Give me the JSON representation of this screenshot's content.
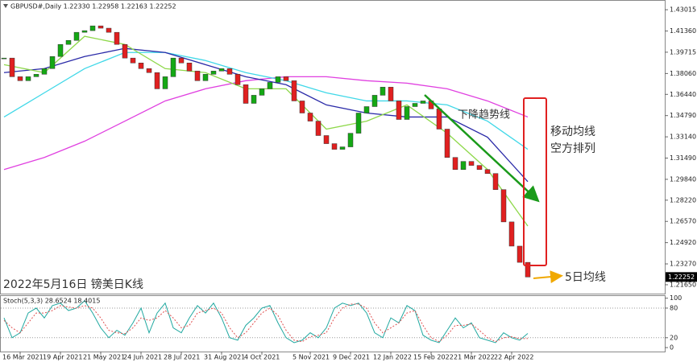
{
  "chart_data": [
    {
      "type": "candlestick",
      "header": "GBPUSD#,Daily  1.22330 1.22958 1.22163 1.22252",
      "caption": "2022年5月16日 镑美日K线",
      "categories": [
        null,
        null,
        "16 Mar 2021",
        null,
        null,
        null,
        null,
        "19 Apr 2021",
        null,
        null,
        null,
        null,
        "21 May 2021",
        null,
        null,
        null,
        null,
        "24 Jun 2021",
        null,
        null,
        null,
        null,
        "28 Jul 2021",
        null,
        null,
        null,
        null,
        "31 Aug 2021",
        null,
        null,
        null,
        null,
        "4 Oct 2021",
        null,
        null,
        null,
        null,
        null,
        "5 Nov 2021",
        null,
        null,
        null,
        null,
        "9 Dec 2021",
        null,
        null,
        null,
        null,
        "12 Jan 2022",
        null,
        null,
        null,
        null,
        "15 Feb 2022",
        null,
        null,
        null,
        null,
        "21 Mar 2022",
        null,
        null,
        null,
        null,
        "22 Apr 2022",
        null,
        null
      ],
      "values": [
        1.3926,
        1.3781,
        1.375,
        1.3781,
        1.38,
        1.3844,
        1.3938,
        1.4032,
        1.4063,
        1.4126,
        1.4139,
        1.4176,
        1.4158,
        1.4126,
        1.4032,
        1.3926,
        1.3888,
        1.3844,
        1.3813,
        1.3687,
        1.3781,
        1.3926,
        1.3888,
        1.3825,
        1.375,
        1.38,
        1.3825,
        1.3844,
        1.38,
        1.3719,
        1.3574,
        1.3637,
        1.3687,
        1.3737,
        1.3781,
        1.375,
        1.3593,
        1.3499,
        1.3436,
        1.3324,
        1.3261,
        1.3217,
        1.3236,
        1.3342,
        1.3499,
        1.3549,
        1.3637,
        1.37,
        1.3593,
        1.3449,
        1.3549,
        1.3574,
        1.3593,
        1.3531,
        1.3374,
        1.3154,
        1.306,
        1.3123,
        1.3092,
        1.306,
        1.3029,
        1.2904,
        1.2653,
        1.2465,
        1.2339,
        1.22252
      ],
      "up_color": "#14a814",
      "down_color": "#e02020",
      "last_price": 1.22252,
      "ylim": [
        1.2096,
        1.4377
      ],
      "yticks": [
        1.43015,
        {
          "value": 1.4136,
          "label": "1.41360"
        },
        1.39715,
        {
          "value": 1.3806,
          "label": "1.38060"
        },
        {
          "value": 1.3644,
          "label": "1.36440"
        },
        {
          "value": 1.3479,
          "label": "1.34790"
        },
        {
          "value": 1.3314,
          "label": "1.33140"
        },
        {
          "value": 1.3149,
          "label": "1.31490"
        },
        {
          "value": 1.2984,
          "label": "1.29840"
        },
        {
          "value": 1.2822,
          "label": "1.28220"
        },
        {
          "value": 1.2657,
          "label": "1.26570"
        },
        {
          "value": 1.2492,
          "label": "1.24920"
        },
        {
          "value": 1.2327,
          "label": "1.23270"
        },
        {
          "value": 1.2165,
          "label": "1.21650"
        }
      ],
      "ma": {
        "x": [
          0,
          5,
          10,
          15,
          20,
          25,
          30,
          35,
          40,
          45,
          50,
          55,
          60,
          65
        ],
        "series": [
          {
            "color": "#e040e0",
            "values": [
              1.306,
              1.3154,
              1.328,
              1.3436,
              1.3593,
              1.3687,
              1.375,
              1.3781,
              1.3781,
              1.375,
              1.3731,
              1.3687,
              1.3593,
              1.3468
            ]
          },
          {
            "color": "#40d8e8",
            "values": [
              1.3468,
              1.3656,
              1.3844,
              1.3969,
              1.3969,
              1.3907,
              1.3813,
              1.375,
              1.3656,
              1.3593,
              1.3593,
              1.3562,
              1.3436,
              1.3217
            ]
          },
          {
            "color": "#2a2aa8",
            "values": [
              1.3813,
              1.3844,
              1.3938,
              1.4001,
              1.3969,
              1.3875,
              1.3781,
              1.3719,
              1.3562,
              1.3499,
              1.3468,
              1.3468,
              1.3311,
              1.2966
            ]
          },
          {
            "color": "#8ed84a",
            "values": [
              1.3875,
              1.3813,
              1.4095,
              1.4032,
              1.3844,
              1.3813,
              1.3687,
              1.3687,
              1.3374,
              1.3436,
              1.3562,
              1.3342,
              1.306,
              1.2621
            ]
          }
        ]
      },
      "annotations": {
        "trend": "下降趋势线",
        "ma_line1": "移动均线",
        "ma_line2": "空方排列",
        "ma5": "5日均线"
      }
    },
    {
      "type": "line",
      "title": "Stoch(5,3,3) 28.6524 18.4015",
      "series": [
        {
          "color": "#20a8a0",
          "dashed": false,
          "values": [
            60,
            20,
            30,
            70,
            80,
            60,
            85,
            90,
            75,
            80,
            95,
            70,
            40,
            20,
            35,
            25,
            50,
            80,
            30,
            70,
            90,
            40,
            30,
            60,
            85,
            70,
            90,
            60,
            20,
            15,
            45,
            60,
            80,
            85,
            50,
            20,
            10,
            15,
            30,
            20,
            40,
            80,
            90,
            85,
            90,
            70,
            30,
            20,
            60,
            50,
            85,
            75,
            25,
            15,
            10,
            35,
            60,
            40,
            50,
            20,
            15,
            10,
            30,
            20,
            15,
            28.6524
          ]
        },
        {
          "color": "#e05050",
          "dashed": true,
          "values": [
            55,
            40,
            30,
            50,
            70,
            70,
            75,
            85,
            82,
            80,
            85,
            80,
            60,
            35,
            30,
            28,
            40,
            60,
            55,
            60,
            75,
            60,
            40,
            45,
            70,
            75,
            80,
            70,
            40,
            20,
            30,
            50,
            70,
            80,
            65,
            35,
            15,
            12,
            22,
            25,
            30,
            60,
            80,
            88,
            88,
            80,
            50,
            30,
            40,
            50,
            70,
            75,
            45,
            20,
            12,
            25,
            45,
            45,
            48,
            35,
            20,
            12,
            20,
            22,
            18,
            18.4015
          ]
        }
      ],
      "ylim": [
        -8,
        106
      ],
      "yticks": [
        100,
        80,
        20,
        0
      ],
      "levels": [
        80,
        20
      ]
    }
  ]
}
